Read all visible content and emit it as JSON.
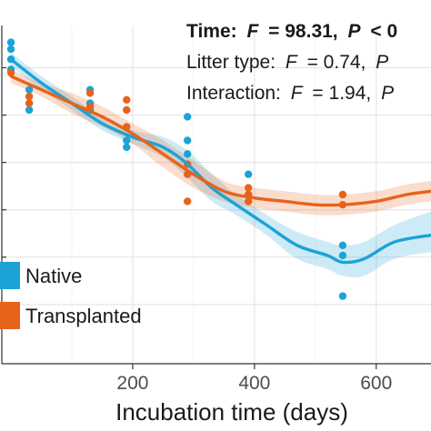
{
  "chart_data": {
    "type": "scatter",
    "title": "",
    "xlabel": "Incubation time (days)",
    "ylabel": "",
    "xlim": [
      -15,
      690
    ],
    "ylim": [
      0,
      100
    ],
    "x_ticks": [
      200,
      400,
      600
    ],
    "x_tick_labels": [
      "200",
      "400",
      "600"
    ],
    "y_ticks": [
      17.5,
      31.5,
      45.5,
      59.5,
      73.5,
      87.5
    ],
    "grid": true,
    "legend_position": "left",
    "annotations": [
      {
        "term": "Time:",
        "stat": "F",
        "value": "= 98.31,",
        "p": "P",
        "pvalue": "< 0",
        "bold": true
      },
      {
        "term": "Litter type:",
        "stat": "F",
        "value": "= 0.74,",
        "p": "P",
        "pvalue": "",
        "bold": false
      },
      {
        "term": "Interaction:",
        "stat": "F",
        "value": "= 1.94,",
        "p": "P",
        "pvalue": "",
        "bold": false
      }
    ],
    "series": [
      {
        "name": "Native",
        "color": "#1BA3D6",
        "points": [
          [
            0,
            95
          ],
          [
            0,
            93
          ],
          [
            0,
            90
          ],
          [
            0,
            87
          ],
          [
            30,
            81
          ],
          [
            30,
            77
          ],
          [
            30,
            75
          ],
          [
            130,
            81
          ],
          [
            130,
            77
          ],
          [
            130,
            75
          ],
          [
            190,
            70
          ],
          [
            190,
            66
          ],
          [
            190,
            64
          ],
          [
            290,
            73
          ],
          [
            290,
            66
          ],
          [
            290,
            62
          ],
          [
            390,
            56
          ],
          [
            390,
            50
          ],
          [
            545,
            35
          ],
          [
            545,
            32
          ],
          [
            545,
            20
          ]
        ],
        "fit": [
          [
            0,
            90
          ],
          [
            50,
            83
          ],
          [
            100,
            77
          ],
          [
            150,
            71
          ],
          [
            200,
            67
          ],
          [
            250,
            64
          ],
          [
            290,
            59
          ],
          [
            330,
            52
          ],
          [
            370,
            47
          ],
          [
            420,
            41
          ],
          [
            470,
            35
          ],
          [
            520,
            32
          ],
          [
            545,
            30
          ],
          [
            580,
            31
          ],
          [
            630,
            36
          ],
          [
            690,
            38
          ]
        ],
        "band_upper": [
          [
            0,
            92
          ],
          [
            50,
            85
          ],
          [
            100,
            79
          ],
          [
            150,
            73
          ],
          [
            200,
            69
          ],
          [
            250,
            67
          ],
          [
            290,
            63
          ],
          [
            330,
            56
          ],
          [
            370,
            50
          ],
          [
            420,
            44
          ],
          [
            470,
            39
          ],
          [
            520,
            36
          ],
          [
            545,
            35
          ],
          [
            580,
            36
          ],
          [
            630,
            41
          ],
          [
            690,
            45
          ]
        ],
        "band_lower": [
          [
            0,
            88
          ],
          [
            50,
            81
          ],
          [
            100,
            75
          ],
          [
            150,
            69
          ],
          [
            200,
            65
          ],
          [
            250,
            61
          ],
          [
            290,
            55
          ],
          [
            330,
            48
          ],
          [
            370,
            44
          ],
          [
            420,
            38
          ],
          [
            470,
            31
          ],
          [
            520,
            28
          ],
          [
            545,
            26
          ],
          [
            580,
            26
          ],
          [
            630,
            31
          ],
          [
            690,
            33
          ]
        ]
      },
      {
        "name": "Transplanted",
        "color": "#E8631A",
        "points": [
          [
            0,
            86
          ],
          [
            30,
            79
          ],
          [
            30,
            77
          ],
          [
            130,
            80
          ],
          [
            130,
            76
          ],
          [
            190,
            78
          ],
          [
            190,
            75
          ],
          [
            190,
            70
          ],
          [
            290,
            59
          ],
          [
            290,
            56
          ],
          [
            290,
            48
          ],
          [
            390,
            52
          ],
          [
            390,
            50
          ],
          [
            390,
            48
          ],
          [
            545,
            50
          ],
          [
            545,
            47
          ]
        ],
        "fit": [
          [
            0,
            85
          ],
          [
            50,
            81
          ],
          [
            100,
            77
          ],
          [
            150,
            73
          ],
          [
            200,
            68
          ],
          [
            250,
            62
          ],
          [
            300,
            56
          ],
          [
            350,
            51
          ],
          [
            400,
            49
          ],
          [
            450,
            48
          ],
          [
            500,
            47
          ],
          [
            545,
            47
          ],
          [
            600,
            48
          ],
          [
            650,
            50
          ],
          [
            690,
            51
          ]
        ],
        "band_upper": [
          [
            0,
            87
          ],
          [
            50,
            83
          ],
          [
            100,
            80
          ],
          [
            150,
            76
          ],
          [
            200,
            71
          ],
          [
            250,
            66
          ],
          [
            300,
            60
          ],
          [
            350,
            54
          ],
          [
            400,
            52
          ],
          [
            450,
            51
          ],
          [
            500,
            50
          ],
          [
            545,
            50
          ],
          [
            600,
            51
          ],
          [
            650,
            53
          ],
          [
            690,
            54
          ]
        ],
        "band_lower": [
          [
            0,
            83
          ],
          [
            50,
            79
          ],
          [
            100,
            74
          ],
          [
            150,
            70
          ],
          [
            200,
            65
          ],
          [
            250,
            58
          ],
          [
            300,
            52
          ],
          [
            350,
            48
          ],
          [
            400,
            46
          ],
          [
            450,
            45
          ],
          [
            500,
            44
          ],
          [
            545,
            44
          ],
          [
            600,
            45
          ],
          [
            650,
            47
          ],
          [
            690,
            48
          ]
        ]
      }
    ]
  }
}
